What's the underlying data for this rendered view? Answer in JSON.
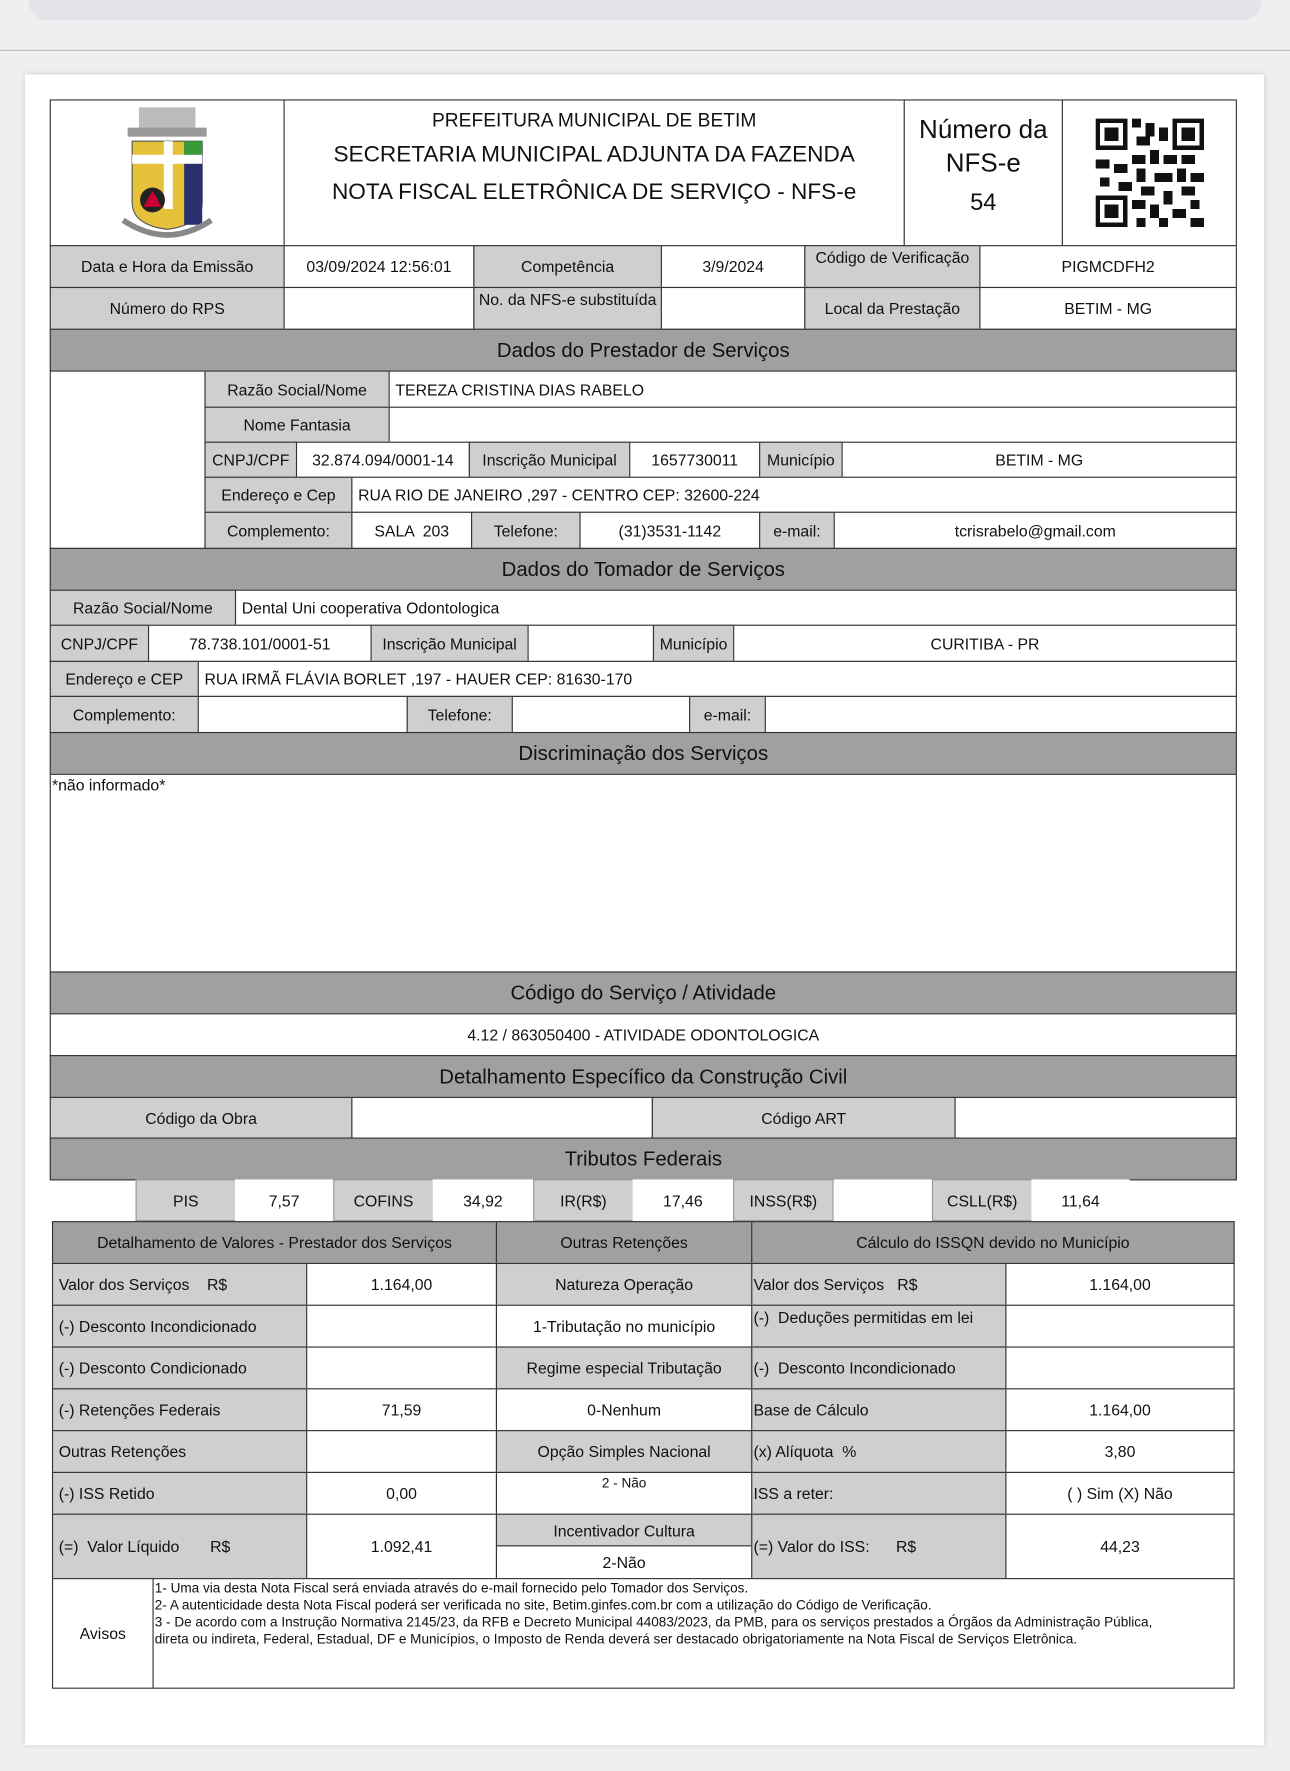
{
  "header": {
    "line1": "PREFEITURA MUNICIPAL DE BETIM",
    "line2": "SECRETARIA MUNICIPAL ADJUNTA DA FAZENDA",
    "line3": "NOTA FISCAL ELETRÔNICA DE SERVIÇO - NFS-e",
    "numero_label_1": "Número da",
    "numero_label_2": "NFS-e",
    "numero_value": "54",
    "logo_icon": "betim-coat-of-arms",
    "qr_icon": "qr-code"
  },
  "info": {
    "emissao_label": "Data e Hora da Emissão",
    "emissao_value": "03/09/2024 12:56:01",
    "competencia_label": "Competência",
    "competencia_value": "3/9/2024",
    "verificacao_label": "Código de Verificação",
    "verificacao_value": "PIGMCDFH2",
    "rps_label": "Número do RPS",
    "substituida_label": "No. da NFS-e substituída",
    "local_label": "Local da Prestação",
    "local_value": "BETIM - MG"
  },
  "prestador": {
    "section": "Dados do Prestador de Serviços",
    "razao_label": "Razão Social/Nome",
    "razao": "TEREZA CRISTINA DIAS RABELO",
    "fantasia_label": "Nome Fantasia",
    "cnpj_label": "CNPJ/CPF",
    "cnpj": "32.874.094/0001-14",
    "im_label": "Inscrição Municipal",
    "im": "1657730011",
    "municipio_label": "Município",
    "municipio": "BETIM - MG",
    "endereco_label": "Endereço e Cep",
    "endereco": "RUA RIO DE JANEIRO ,297 - CENTRO CEP: 32600-224",
    "complemento_label": "Complemento:",
    "complemento": "SALA  203",
    "telefone_label": "Telefone:",
    "telefone": "(31)3531-1142",
    "email_label": "e-mail:",
    "email": "tcrisrabelo@gmail.com"
  },
  "tomador": {
    "section": "Dados do Tomador de Serviços",
    "razao_label": "Razão Social/Nome",
    "razao": "Dental Uni cooperativa Odontologica",
    "cnpj_label": "CNPJ/CPF",
    "cnpj": "78.738.101/0001-51",
    "im_label": "Inscrição Municipal",
    "municipio_label": "Município",
    "municipio": "CURITIBA - PR",
    "endereco_label": "Endereço e CEP",
    "endereco": "RUA IRMÃ FLÁVIA BORLET ,197 - HAUER CEP: 81630-170",
    "complemento_label": "Complemento:",
    "telefone_label": "Telefone:",
    "email_label": "e-mail:"
  },
  "discriminacao": {
    "section": "Discriminação dos Serviços",
    "text": "*não informado*"
  },
  "servico": {
    "section": "Código do Serviço / Atividade",
    "value": "4.12 / 863050400 - ATIVIDADE ODONTOLOGICA"
  },
  "construcao": {
    "section": "Detalhamento Específico da Construção Civil",
    "obra_label": "Código da Obra",
    "art_label": "Código ART"
  },
  "tributos": {
    "section": "Tributos Federais",
    "items": [
      {
        "label": "PIS",
        "value": "7,57"
      },
      {
        "label": "COFINS",
        "value": "34,92"
      },
      {
        "label": "IR(R$)",
        "value": "17,46"
      },
      {
        "label": "INSS(R$)",
        "value": ""
      },
      {
        "label": "CSLL(R$)",
        "value": "11,64"
      }
    ]
  },
  "valores": {
    "h1": "Detalhamento de Valores - Prestador dos Serviços",
    "h2": "Outras Retenções",
    "h3": "Cálculo do ISSQN devido no Município",
    "left": [
      {
        "label": "Valor dos Serviços    R$",
        "value": "1.164,00"
      },
      {
        "label": "(-) Desconto Incondicionado",
        "value": ""
      },
      {
        "label": "(-) Desconto Condicionado",
        "value": ""
      },
      {
        "label": "(-) Retenções Federais",
        "value": "71,59"
      },
      {
        "label": "Outras Retenções",
        "value": ""
      },
      {
        "label": "(-) ISS Retido",
        "value": "0,00"
      },
      {
        "label": "(=)  Valor Líquido       R$",
        "value": "1.092,41"
      }
    ],
    "mid": [
      "Natureza Operação",
      "1-Tributação no município",
      "Regime especial Tributação",
      "0-Nenhum",
      "Opção Simples Nacional",
      "2 - Não",
      "Incentivador Cultura",
      "2-Não"
    ],
    "right": [
      {
        "label": "Valor dos Serviços   R$",
        "value": "1.164,00"
      },
      {
        "label": "(-)  Deduções permitidas em lei",
        "value": ""
      },
      {
        "label": "(-)  Desconto Incondicionado",
        "value": ""
      },
      {
        "label": "Base de Cálculo",
        "value": "1.164,00"
      },
      {
        "label": "(x) Alíquota  %",
        "value": "3,80"
      },
      {
        "label": "ISS a reter:",
        "value": "( ) Sim (X) Não"
      },
      {
        "label": "(=) Valor do ISS:      R$",
        "value": "44,23"
      }
    ]
  },
  "avisos": {
    "label": "Avisos",
    "lines": [
      "1- Uma via desta Nota Fiscal será enviada através do e-mail fornecido pelo Tomador dos Serviços.",
      "2- A autenticidade desta Nota Fiscal poderá ser verificada no site, Betim.ginfes.com.br com a utilização do Código de Verificação.",
      "3 - De acordo com a Instrução Normativa 2145/23, da RFB e Decreto Municipal 44083/2023, da PMB, para os serviços prestados a Órgãos da Administração Pública,",
      "direta ou indireta, Federal, Estadual, DF e Municípios, o Imposto de Renda deverá ser destacado obrigatoriamente  na Nota Fiscal de Serviços Eletrônica."
    ]
  }
}
